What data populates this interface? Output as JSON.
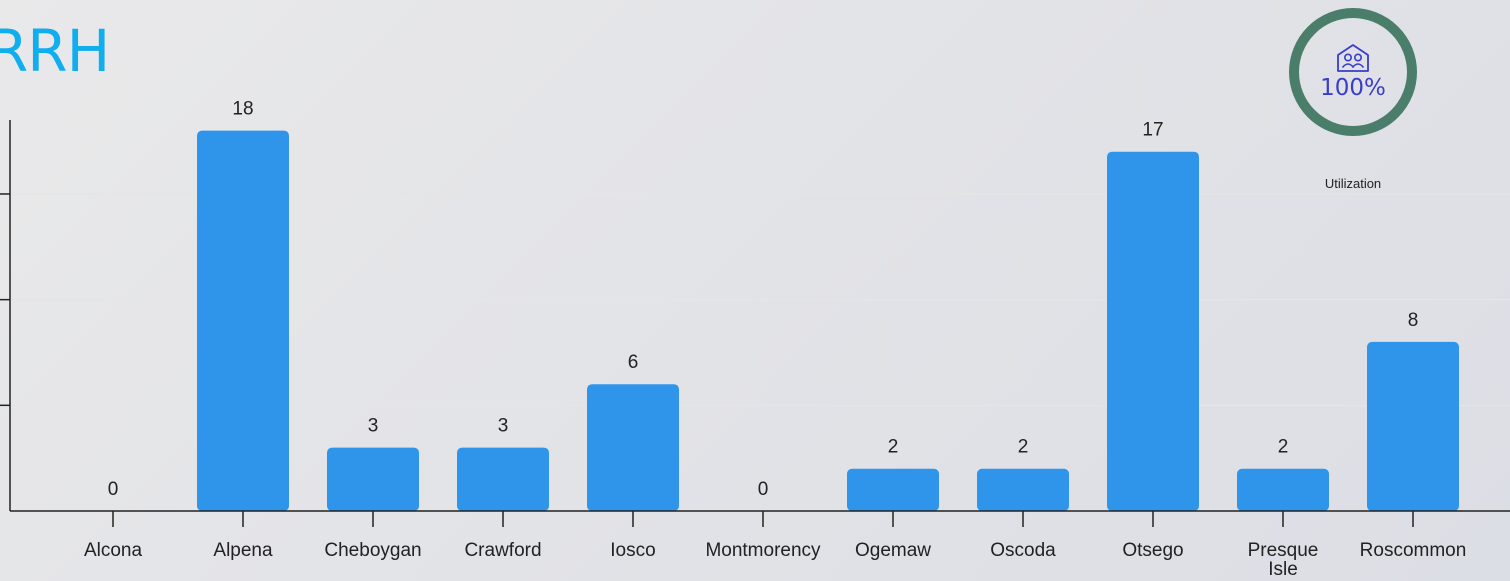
{
  "header": {
    "title": "RRH"
  },
  "utilization": {
    "value": "100%",
    "label": "Utilization",
    "ring_color": "#4a7d6a",
    "text_color": "#3a3dc9",
    "icon": "household-icon"
  },
  "chart_data": {
    "type": "bar",
    "categories": [
      "Alcona",
      "Alpena",
      "Cheboygan",
      "Crawford",
      "Iosco",
      "Montmorency",
      "Ogemaw",
      "Oscoda",
      "Otsego",
      "Presque Isle",
      "Roscommon"
    ],
    "values": [
      0,
      18,
      3,
      3,
      6,
      0,
      2,
      2,
      17,
      2,
      8
    ],
    "title": "RRH",
    "xlabel": "",
    "ylabel": "",
    "ylim": [
      0,
      18.5
    ],
    "yticks": [
      0,
      5,
      10,
      15
    ],
    "bar_color": "#2e95eb",
    "grid": true,
    "legend": "none"
  }
}
